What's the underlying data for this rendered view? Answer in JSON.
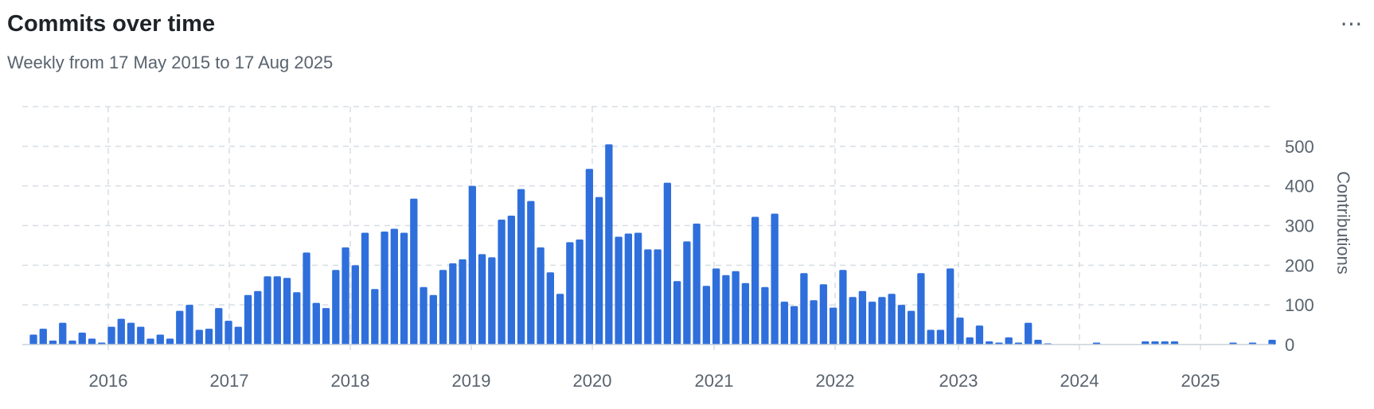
{
  "header": {
    "title": "Commits over time",
    "subtitle": "Weekly from 17 May 2015 to 17 Aug 2025",
    "more_icon": "kebab-horizontal-icon"
  },
  "colors": {
    "bar": "#2f6fdc",
    "grid": "#d8dee4",
    "axis_text": "#59636e"
  },
  "chart_data": {
    "type": "bar",
    "title": "Commits over time",
    "subtitle": "Weekly from 17 May 2015 to 17 Aug 2025",
    "xlabel": "",
    "ylabel": "Contributions",
    "ylim": [
      0,
      600
    ],
    "y_ticks": [
      0,
      100,
      200,
      300,
      400,
      500
    ],
    "y_axis_side": "right",
    "x_ticks": [
      "2016",
      "2017",
      "2018",
      "2019",
      "2020",
      "2021",
      "2022",
      "2023",
      "2024",
      "2025"
    ],
    "grid": true,
    "values": [
      25,
      40,
      10,
      55,
      10,
      30,
      15,
      5,
      45,
      65,
      55,
      45,
      15,
      25,
      15,
      85,
      100,
      37,
      40,
      92,
      60,
      45,
      125,
      135,
      172,
      172,
      168,
      132,
      232,
      105,
      92,
      188,
      245,
      200,
      282,
      140,
      285,
      292,
      282,
      368,
      145,
      125,
      188,
      205,
      215,
      400,
      228,
      220,
      315,
      325,
      392,
      362,
      245,
      182,
      128,
      258,
      265,
      443,
      372,
      505,
      272,
      280,
      282,
      240,
      240,
      408,
      160,
      260,
      305,
      148,
      192,
      175,
      185,
      155,
      322,
      145,
      330,
      108,
      97,
      180,
      112,
      152,
      93,
      188,
      120,
      135,
      108,
      120,
      128,
      100,
      85,
      180,
      37,
      37,
      192,
      68,
      18,
      48,
      8,
      5,
      18,
      5,
      55,
      12,
      3,
      0,
      0,
      0,
      0,
      5,
      0,
      0,
      0,
      0,
      8,
      8,
      8,
      8,
      0,
      0,
      0,
      0,
      0,
      5,
      0,
      5,
      0,
      12
    ]
  }
}
